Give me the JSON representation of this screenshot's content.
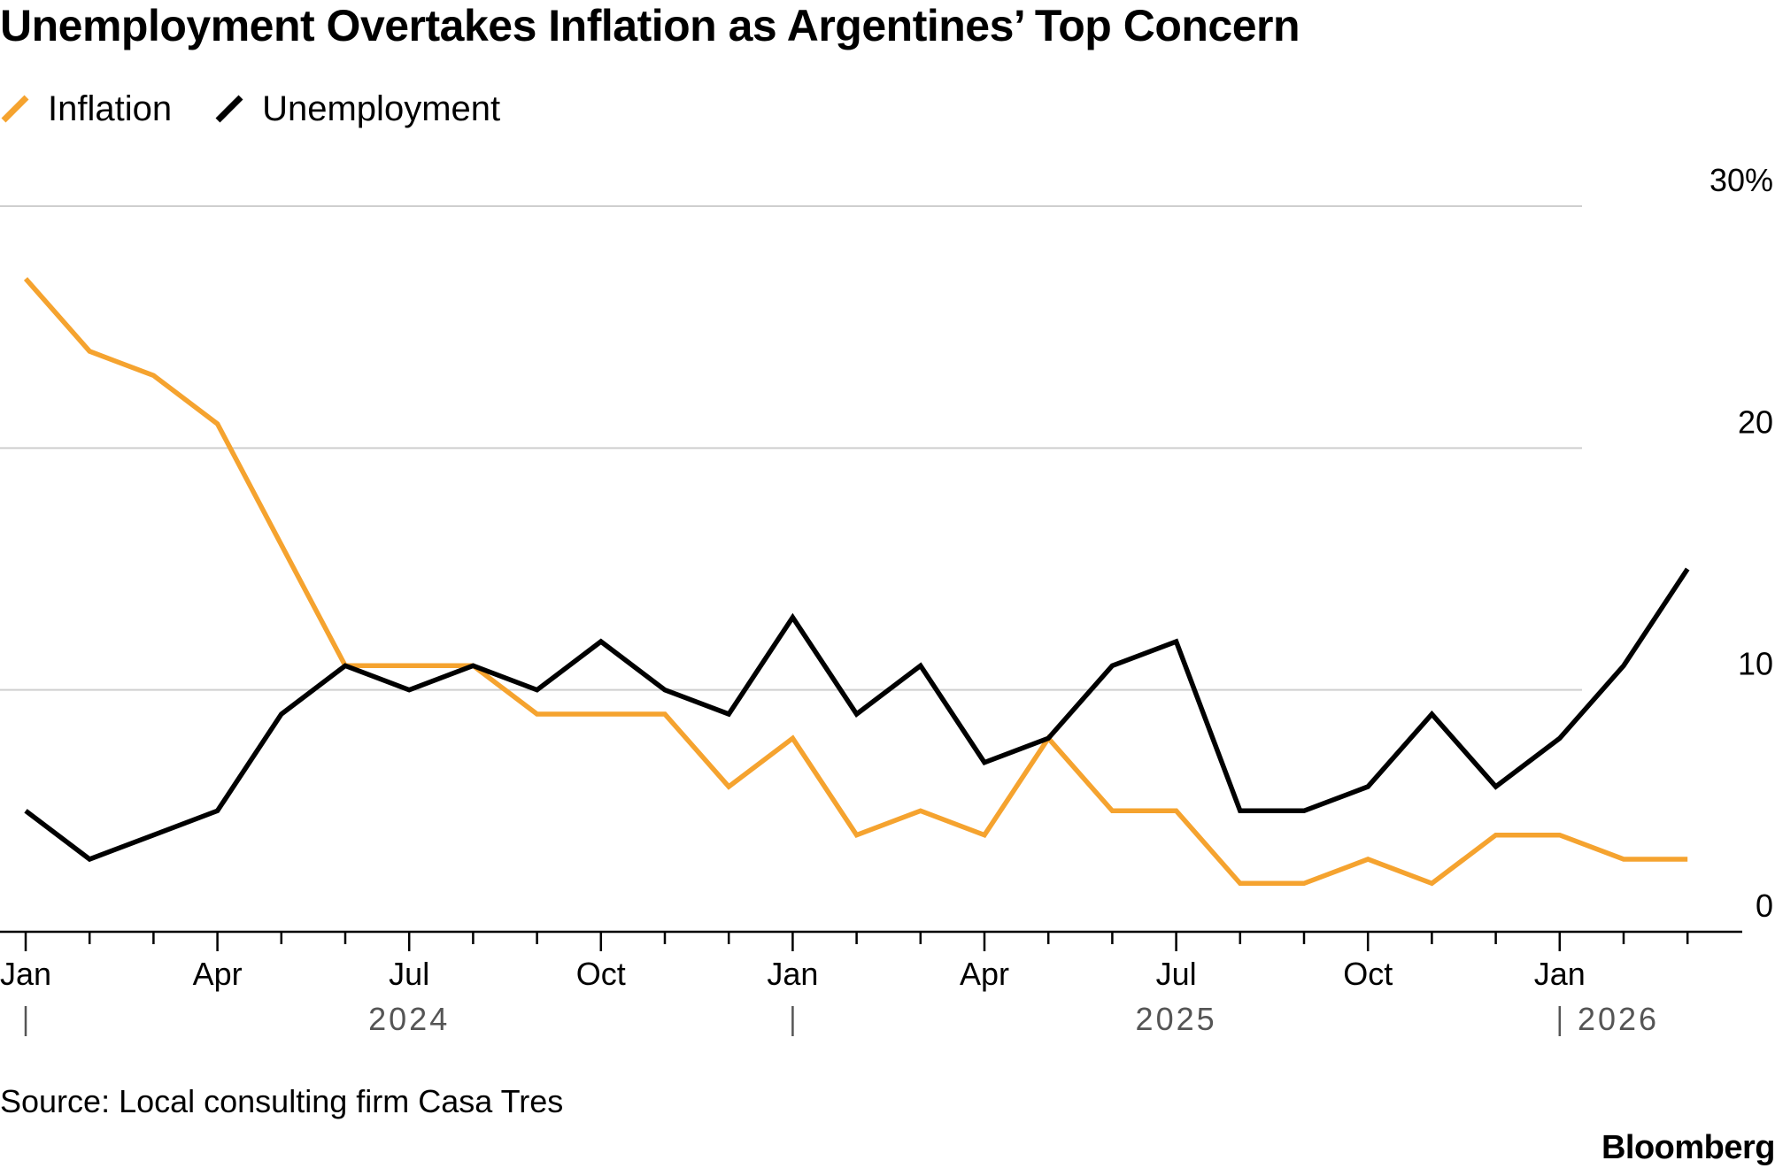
{
  "colors": {
    "inflation": "#F5A32F",
    "unemployment": "#000000",
    "grid": "#cfcfcf",
    "axis": "#000000",
    "year": "#555555"
  },
  "source_text": "Source: Local consulting firm Casa Tres",
  "brand_text": "Bloomberg",
  "chart_data": {
    "type": "line",
    "title": "Unemployment Overtakes Inflation as Argentines’ Top Concern",
    "x_count": 27,
    "series": [
      {
        "name": "Inflation",
        "values": [
          27,
          24,
          23,
          21,
          16,
          11,
          11,
          11,
          9,
          9,
          9,
          6,
          8,
          4,
          5,
          4,
          8,
          5,
          5,
          2,
          2,
          3,
          2,
          4,
          4,
          3,
          3
        ]
      },
      {
        "name": "Unemployment",
        "values": [
          5,
          3,
          4,
          5,
          9,
          11,
          10,
          11,
          10,
          12,
          10,
          9,
          13,
          9,
          11,
          7,
          8,
          11,
          12,
          5,
          5,
          6,
          9,
          6,
          8,
          11,
          15
        ]
      }
    ],
    "ylim": [
      0,
      30
    ],
    "yticks": [
      {
        "value": 30,
        "label": "30%"
      },
      {
        "value": 20,
        "label": "20"
      },
      {
        "value": 10,
        "label": "10"
      },
      {
        "value": 0,
        "label": "0"
      }
    ],
    "xticks": [
      {
        "index": 0,
        "label": "Jan"
      },
      {
        "index": 3,
        "label": "Apr"
      },
      {
        "index": 6,
        "label": "Jul"
      },
      {
        "index": 9,
        "label": "Oct"
      },
      {
        "index": 12,
        "label": "Jan"
      },
      {
        "index": 15,
        "label": "Apr"
      },
      {
        "index": 18,
        "label": "Jul"
      },
      {
        "index": 21,
        "label": "Oct"
      },
      {
        "index": 24,
        "label": "Jan"
      }
    ],
    "years": [
      {
        "index": 6,
        "label": "2024"
      },
      {
        "index": 18,
        "label": "2025"
      },
      {
        "index": 25,
        "label": "2026"
      }
    ],
    "year_separators": [
      0,
      12,
      24
    ],
    "legend_position": "top-left",
    "grid": true
  }
}
